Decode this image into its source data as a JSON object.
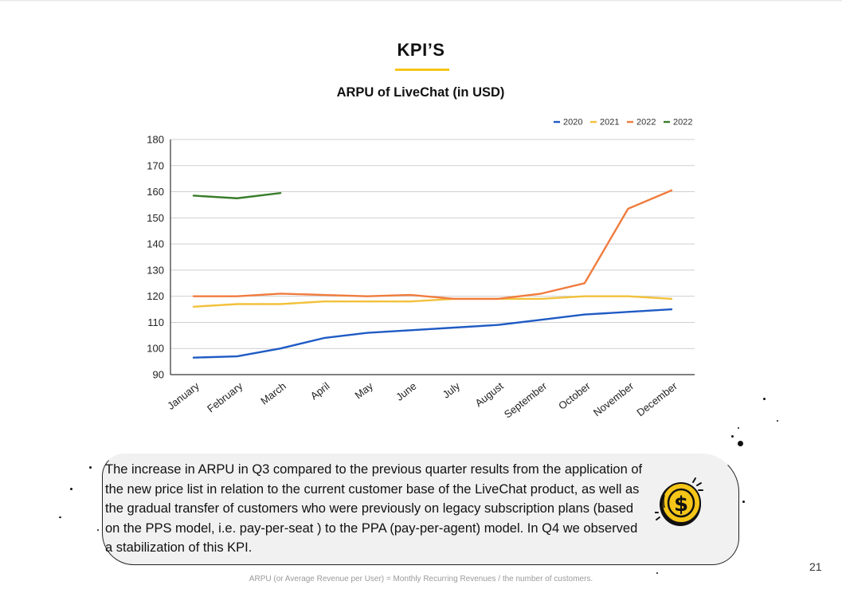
{
  "slide": {
    "title": "KPI’S",
    "description": "The increase in ARPU in Q3 compared to the previous quarter results from the application of the new price list in relation to the current customer base of the LiveChat product, as well as the gradual transfer of customers who were previously on legacy subscription plans (based on the PPS model, i.e. pay-per-seat ) to the PPA (pay-per-agent) model. In Q4 we observed a stabilization of this KPI.",
    "footnote": "ARPU (or Average Revenue per User) = Monthly Recurring Revenues / the number of customers.",
    "page_number": "21",
    "coin_icon": "dollar-coin-icon",
    "accent_color": "#f5c518",
    "box_color": "#f1f1f1"
  },
  "chart_data": {
    "type": "line",
    "title": "ARPU of LiveChat (in USD)",
    "xlabel": "",
    "ylabel": "",
    "ylim": [
      90,
      180
    ],
    "yticks": [
      "90",
      "100",
      "110",
      "120",
      "130",
      "140",
      "150",
      "160",
      "170",
      "180"
    ],
    "categories": [
      "January",
      "February",
      "March",
      "April",
      "May",
      "June",
      "July",
      "August",
      "September",
      "October",
      "November",
      "December"
    ],
    "grid": true,
    "legend_position": "top-right",
    "series": [
      {
        "name": "2020",
        "color": "#1f5bc4",
        "values": [
          96.5,
          97,
          100,
          104,
          106,
          107,
          108,
          109,
          111,
          113,
          114,
          115
        ]
      },
      {
        "name": "2021",
        "color": "#f2c13b",
        "values": [
          116,
          117,
          117,
          118,
          118,
          118,
          119,
          119,
          119,
          120,
          120,
          119
        ]
      },
      {
        "name": "2022",
        "color": "#f07c3e",
        "values": [
          120,
          120,
          121,
          120.5,
          120,
          120.5,
          119,
          119,
          121,
          125,
          153.5,
          160.5
        ]
      },
      {
        "name": "2022",
        "color": "#3a7d2c",
        "values": [
          158.5,
          157.5,
          159.5,
          null,
          null,
          null,
          null,
          null,
          null,
          null,
          null,
          null
        ]
      }
    ]
  }
}
